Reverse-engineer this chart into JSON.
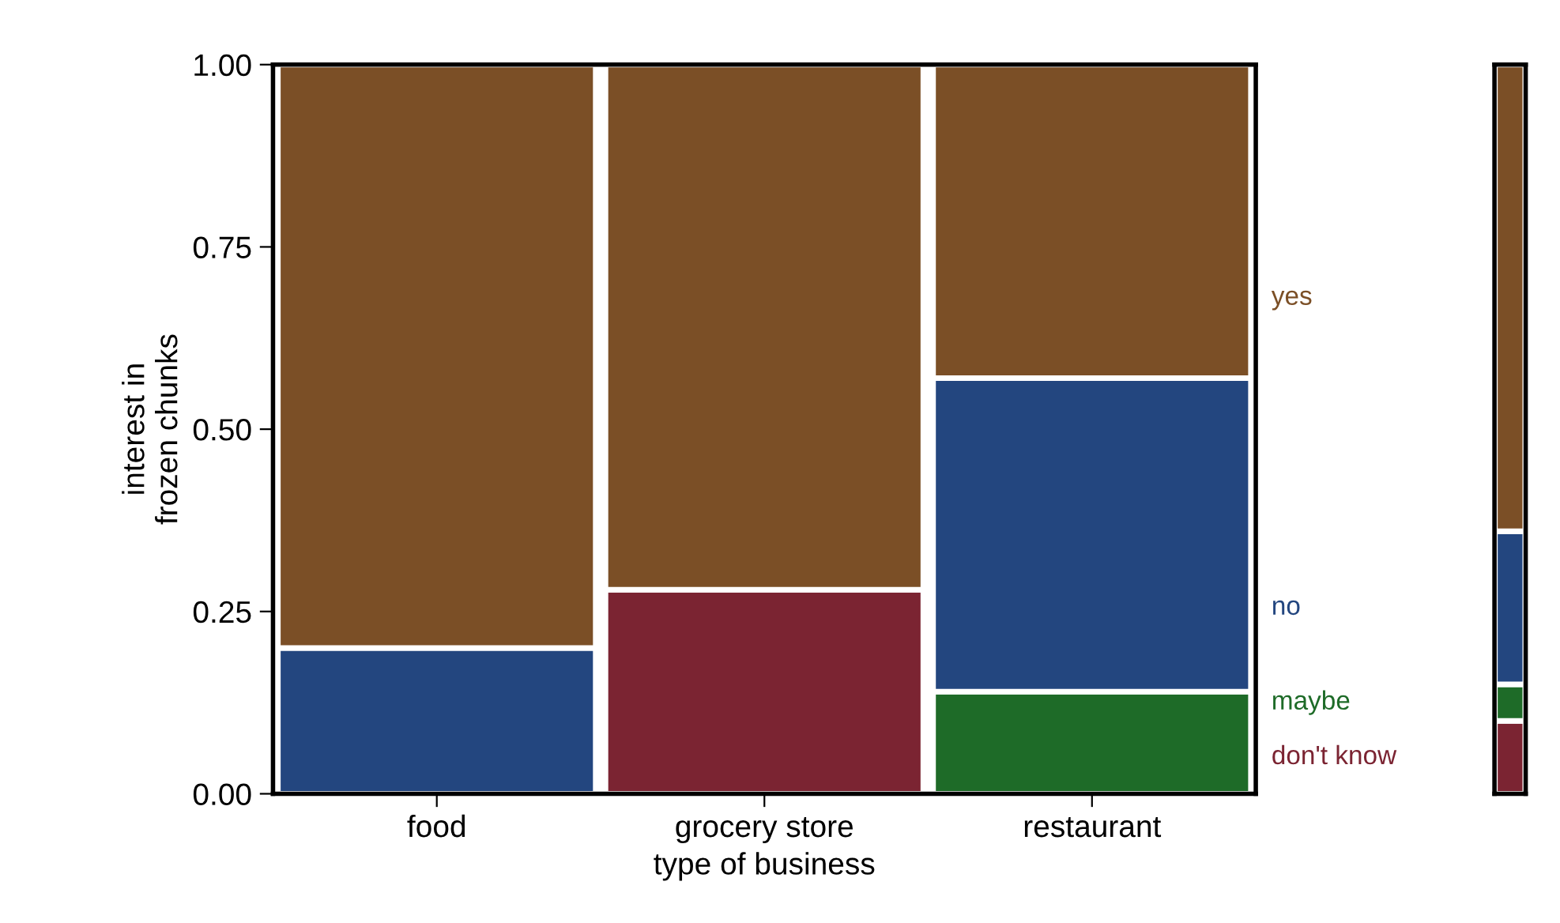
{
  "chart_data": [
    {
      "type": "bar",
      "stacked": true,
      "xlabel": "type of business",
      "ylabel": "interest in\nfrozen chunks",
      "categories": [
        "food",
        "grocery store",
        "restaurant"
      ],
      "series": [
        {
          "name": "don't know",
          "color": "#7b2432",
          "values": [
            0,
            0.28,
            0
          ]
        },
        {
          "name": "maybe",
          "color": "#1e6b28",
          "values": [
            0,
            0,
            0.14
          ]
        },
        {
          "name": "no",
          "color": "#23467f",
          "values": [
            0.2,
            0,
            0.43
          ]
        },
        {
          "name": "yes",
          "color": "#7b4f26",
          "values": [
            0.8,
            0.72,
            0.43
          ]
        }
      ],
      "ylim": [
        0,
        1
      ],
      "yticks": [
        {
          "value": 0,
          "label": "0.00"
        },
        {
          "value": 0.25,
          "label": "0.25"
        },
        {
          "value": 0.5,
          "label": "0.50"
        },
        {
          "value": 0.75,
          "label": "0.75"
        },
        {
          "value": 1,
          "label": "1.00"
        }
      ],
      "legend": "right"
    },
    {
      "type": "bar",
      "stacked": true,
      "categories": [
        null
      ],
      "series": [
        {
          "color": "#7b2432",
          "values": [
            0.1
          ]
        },
        {
          "color": "#1e6b28",
          "values": [
            0.05
          ]
        },
        {
          "color": "#23467f",
          "values": [
            0.21
          ]
        },
        {
          "color": "#7b4f26",
          "values": [
            0.64
          ]
        }
      ],
      "ylim": [
        0,
        1
      ],
      "tick_labels": false
    }
  ]
}
